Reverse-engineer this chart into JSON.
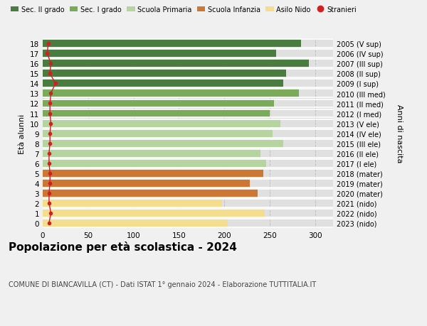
{
  "ages": [
    18,
    17,
    16,
    15,
    14,
    13,
    12,
    11,
    10,
    9,
    8,
    7,
    6,
    5,
    4,
    3,
    2,
    1,
    0
  ],
  "right_labels": [
    "2005 (V sup)",
    "2006 (IV sup)",
    "2007 (III sup)",
    "2008 (II sup)",
    "2009 (I sup)",
    "2010 (III med)",
    "2011 (II med)",
    "2012 (I med)",
    "2013 (V ele)",
    "2014 (IV ele)",
    "2015 (III ele)",
    "2016 (II ele)",
    "2017 (I ele)",
    "2018 (mater)",
    "2019 (mater)",
    "2020 (mater)",
    "2021 (nido)",
    "2022 (nido)",
    "2023 (nido)"
  ],
  "bar_values": [
    285,
    257,
    293,
    268,
    265,
    282,
    255,
    250,
    262,
    253,
    265,
    240,
    246,
    243,
    228,
    237,
    198,
    245,
    204
  ],
  "bar_colors": [
    "#4a7c3f",
    "#4a7c3f",
    "#4a7c3f",
    "#4a7c3f",
    "#4a7c3f",
    "#7aaa5a",
    "#7aaa5a",
    "#7aaa5a",
    "#b5d4a0",
    "#b5d4a0",
    "#b5d4a0",
    "#b5d4a0",
    "#b5d4a0",
    "#cc7733",
    "#cc7733",
    "#cc7733",
    "#f5dd90",
    "#f5dd90",
    "#f5dd90"
  ],
  "stranieri_values": [
    6,
    5,
    9,
    8,
    14,
    9,
    8,
    8,
    9,
    8,
    8,
    7,
    7,
    8,
    8,
    7,
    7,
    9,
    7
  ],
  "legend_labels": [
    "Sec. II grado",
    "Sec. I grado",
    "Scuola Primaria",
    "Scuola Infanzia",
    "Asilo Nido",
    "Stranieri"
  ],
  "legend_colors": [
    "#4a7c3f",
    "#7aaa5a",
    "#b5d4a0",
    "#cc7733",
    "#f5dd90",
    "#cc2222"
  ],
  "title": "Popolazione per età scolastica - 2024",
  "subtitle": "COMUNE DI BIANCAVILLA (CT) - Dati ISTAT 1° gennaio 2024 - Elaborazione TUTTITALIA.IT",
  "ylabel": "Età alunni",
  "right_ylabel": "Anni di nascita",
  "xlim": [
    0,
    320
  ],
  "xticks": [
    0,
    50,
    100,
    150,
    200,
    250,
    300
  ],
  "background_color": "#f0f0f0",
  "bar_background": "#e0e0e0"
}
